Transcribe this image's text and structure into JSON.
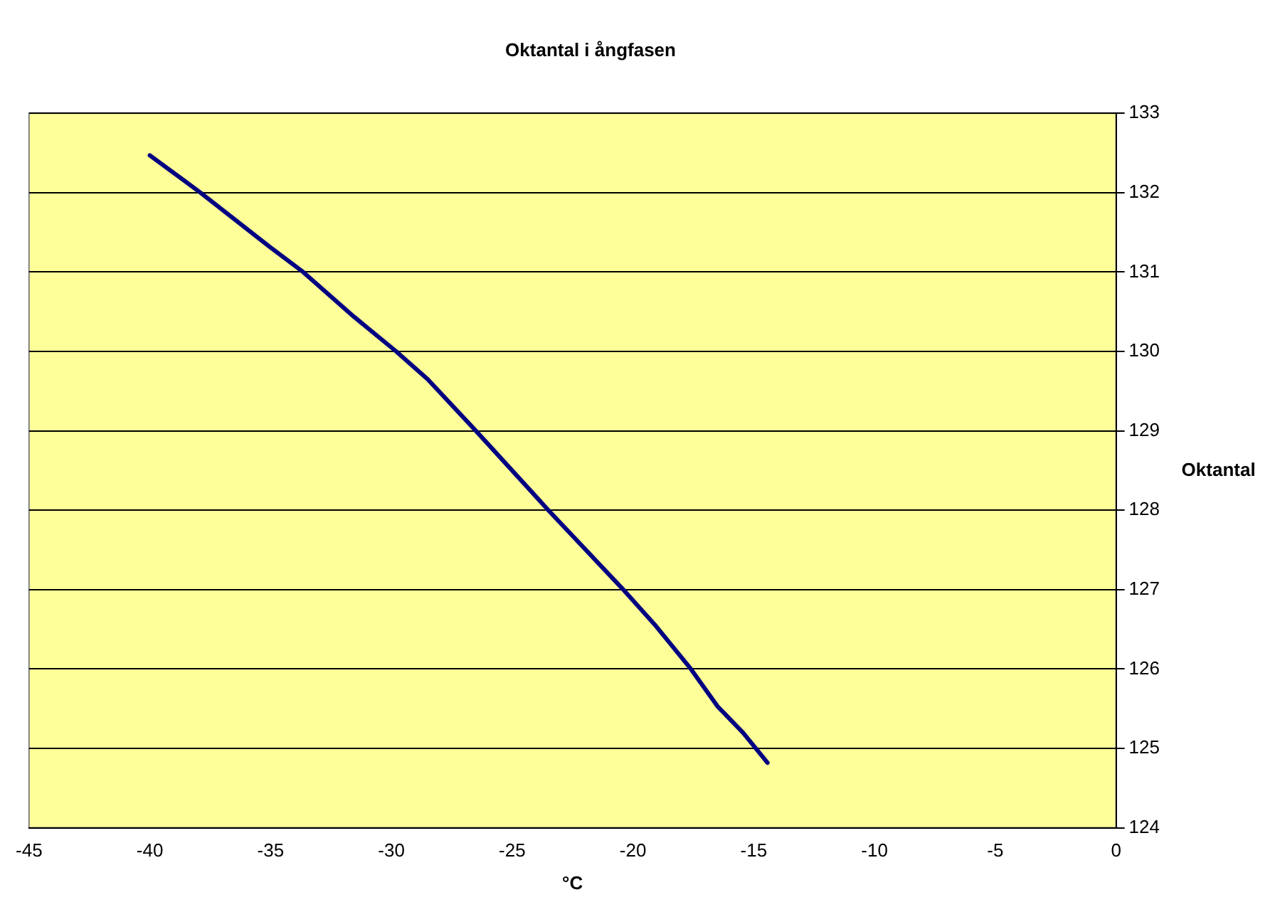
{
  "chart_data": {
    "type": "line",
    "title": "Oktantal i ångfasen",
    "xlabel": "°C",
    "ylabel": "Oktantal",
    "xlim": [
      -45,
      0
    ],
    "xticks": [
      -45,
      -40,
      -35,
      -30,
      -25,
      -20,
      -15,
      -10,
      -5,
      0
    ],
    "ylim": [
      124,
      133
    ],
    "yticks": [
      124,
      125,
      126,
      127,
      128,
      129,
      130,
      131,
      132,
      133
    ],
    "grid": "y",
    "legend": false,
    "marker": "none",
    "line_style": "solid",
    "series": [
      {
        "color": "#000080",
        "x": [
          -40,
          -37.9,
          -35.05,
          -33.65,
          -31.56,
          -29.8,
          -28.5,
          -26.5,
          -23.5,
          -20.46,
          -19.1,
          -17.6,
          -16.5,
          -15.45,
          -14.43
        ],
        "values": [
          132.47,
          132.0,
          131.32,
          131.0,
          130.44,
          130.0,
          129.65,
          129.0,
          128.0,
          127.02,
          126.56,
          126.0,
          125.53,
          125.2,
          124.82
        ]
      }
    ]
  }
}
